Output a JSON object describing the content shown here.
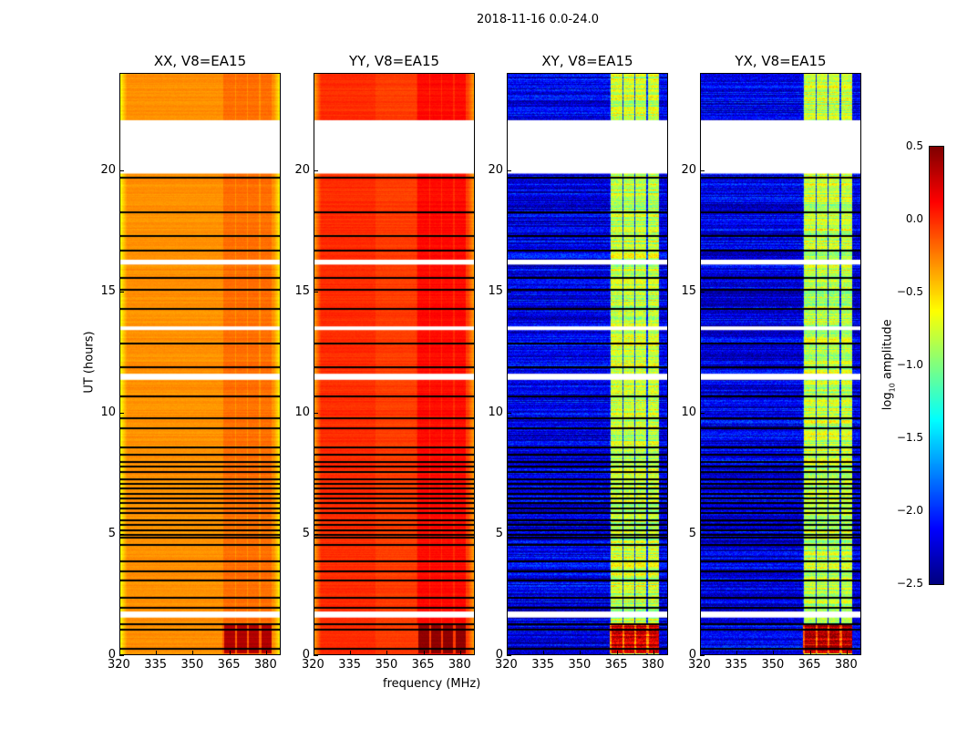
{
  "chart_data": {
    "type": "heatmap",
    "title": "2018-11-16 0.0-24.0",
    "xlabel": "frequency (MHz)",
    "ylabel": "UT (hours)",
    "xlim": [
      320,
      386
    ],
    "ylim": [
      0,
      24
    ],
    "xticks": [
      "320",
      "335",
      "350",
      "365",
      "380"
    ],
    "yticks": [
      "0",
      "5",
      "10",
      "15",
      "20"
    ],
    "panels": [
      {
        "title": "XX, V8=EA15",
        "baseline_log10": -0.3,
        "band_log10": -0.2,
        "low_time_band_log10": 0.35
      },
      {
        "title": "YY, V8=EA15",
        "baseline_log10": -0.05,
        "band_log10": 0.1,
        "low_time_band_log10": 0.45
      },
      {
        "title": "XY, V8=EA15",
        "baseline_log10": -2.2,
        "band_log10": -0.8,
        "low_time_band_log10": 0.3
      },
      {
        "title": "YX, V8=EA15",
        "baseline_log10": -2.2,
        "band_log10": -0.8,
        "low_time_band_log10": 0.3
      }
    ],
    "band_range_mhz": [
      362,
      382
    ],
    "flagged_white_hours": [
      [
        19.85,
        22.05
      ],
      [
        1.55,
        1.8
      ],
      [
        11.35,
        11.6
      ],
      [
        13.4,
        13.55
      ],
      [
        16.1,
        16.3
      ]
    ],
    "black_lines_hours": [
      0.3,
      1.1,
      1.3,
      2.0,
      2.4,
      3.1,
      3.5,
      3.9,
      4.6,
      4.9,
      5.0,
      5.2,
      5.4,
      5.6,
      5.9,
      6.1,
      6.3,
      6.5,
      6.7,
      6.9,
      7.1,
      7.3,
      7.6,
      7.8,
      8.0,
      8.3,
      8.6,
      9.4,
      9.8,
      10.7,
      11.9,
      12.9,
      14.3,
      15.1,
      15.6,
      16.7,
      17.3,
      18.3,
      19.7
    ],
    "colorbar": {
      "label": "log10 amplitude",
      "range": [
        -2.5,
        0.5
      ],
      "ticks": [
        "0.5",
        "0.0",
        "−0.5",
        "−1.0",
        "−1.5",
        "−2.0",
        "−2.5"
      ],
      "colormap": "jet"
    }
  }
}
